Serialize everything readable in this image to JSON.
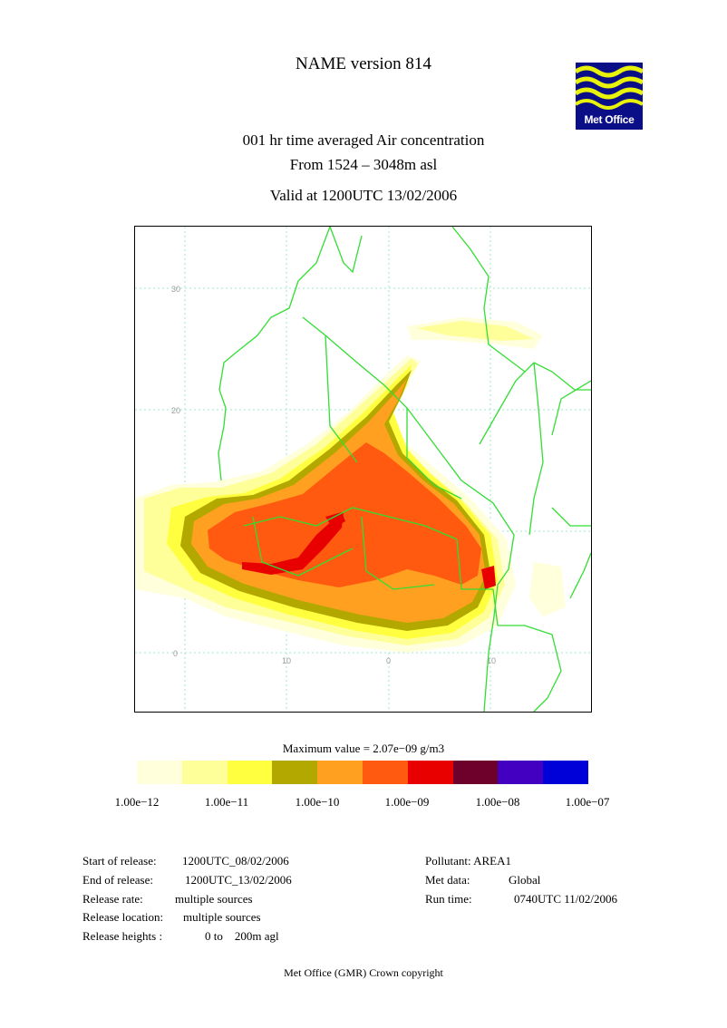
{
  "header": {
    "title": "NAME version 814",
    "line1": "001 hr time averaged   Air concentration",
    "line2": "From  1524 –  3048m asl",
    "line3": "Valid at 1200UTC 13/02/2006"
  },
  "logo": {
    "text": "Met Office",
    "color": "#0b0f87",
    "wave_color": "#e8f20a"
  },
  "map": {
    "gridlabels": {
      "lat": [
        "30",
        "20",
        "0"
      ],
      "lon": [
        "10",
        "0",
        "10"
      ]
    },
    "colors": {
      "coast": "#33dd33",
      "grid": "#9ee8c8"
    }
  },
  "legend": {
    "max_value": "Maximum value = 2.07e−09 g/m3",
    "colors": [
      "#ffffdc",
      "#ffff9a",
      "#ffff40",
      "#b2a800",
      "#ffa020",
      "#ff5a10",
      "#e80000",
      "#6e002c",
      "#4400c0",
      "#0000d8"
    ],
    "ticks": [
      "1.00e−12",
      "1.00e−11",
      "1.00e−10",
      "1.00e−09",
      "1.00e−08",
      "1.00e−07"
    ]
  },
  "info": {
    "start_label": "Start of release:",
    "start_value": "1200UTC_08/02/2006",
    "end_label": "End of release:",
    "end_value": "1200UTC_13/02/2006",
    "rate_label": "Release rate:",
    "rate_value": "multiple sources",
    "location_label": "Release location:",
    "location_value": "multiple sources",
    "heights_label": "Release heights :",
    "heights_value": "0 to    200m agl",
    "pollutant": "Pollutant: AREA1",
    "metdata_label": "Met data:",
    "metdata_value": "Global",
    "runtime_label": "Run time:",
    "runtime_value": "0740UTC 11/02/2006"
  },
  "footer": "Met Office (GMR)  Crown copyright"
}
